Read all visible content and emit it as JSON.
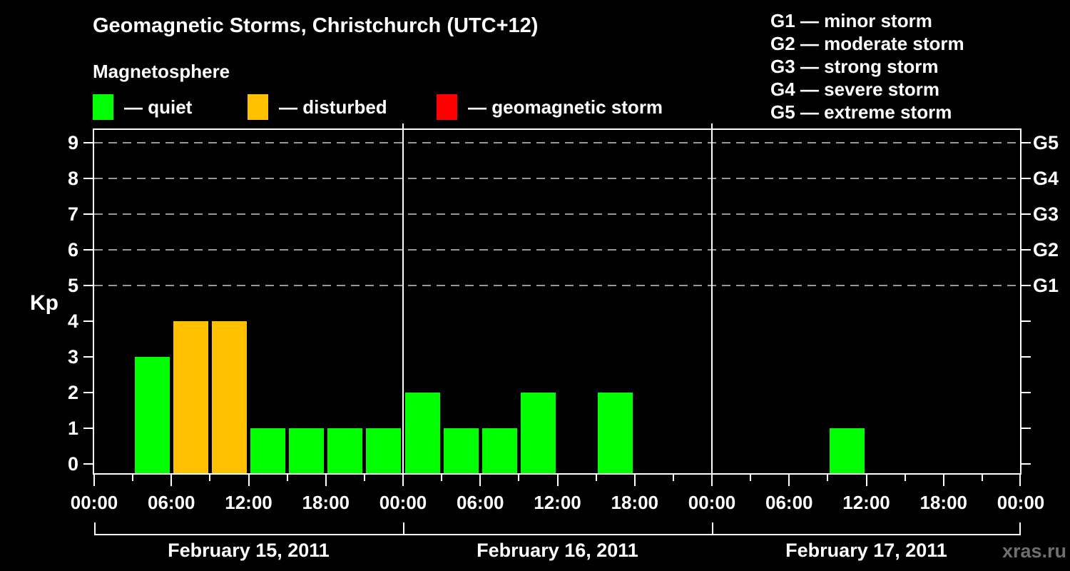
{
  "page": {
    "title": "Geomagnetic Storms, Christchurch (UTC+12)",
    "subtitle": "Magnetosphere",
    "watermark": "xras.ru"
  },
  "legend": {
    "items": [
      {
        "name": "quiet",
        "label": "— quiet",
        "color": "#00ff00"
      },
      {
        "name": "disturbed",
        "label": "— disturbed",
        "color": "#ffc000"
      },
      {
        "name": "storm",
        "label": "— geomagnetic storm",
        "color": "#ff0000"
      }
    ]
  },
  "g_scale_legend": {
    "items": [
      "G1 — minor storm",
      "G2 — moderate storm",
      "G3 — strong storm",
      "G4 — severe storm",
      "G5 — extreme storm"
    ]
  },
  "chart_data": {
    "type": "bar",
    "title": "Geomagnetic Storms, Christchurch (UTC+12)",
    "ylabel": "Kp",
    "ylim": [
      0,
      9
    ],
    "yticks": [
      0,
      1,
      2,
      3,
      4,
      5,
      6,
      7,
      8,
      9
    ],
    "gridlines_at": [
      5,
      6,
      7,
      8,
      9
    ],
    "grid": "horizontal dashed lines at storm levels G1–G5 only",
    "right_axis_labels": [
      {
        "value": 5,
        "label": "G1"
      },
      {
        "value": 6,
        "label": "G2"
      },
      {
        "value": 7,
        "label": "G3"
      },
      {
        "value": 8,
        "label": "G4"
      },
      {
        "value": 9,
        "label": "G5"
      }
    ],
    "x_time_ticks": [
      "00:00",
      "06:00",
      "12:00",
      "18:00"
    ],
    "x_final_tick": "00:00",
    "bar_interval_hours": 3,
    "days": [
      {
        "date": "February 15, 2011",
        "values": [
          0,
          3,
          4,
          4,
          1,
          1,
          1,
          1
        ],
        "status": [
          "none",
          "quiet",
          "disturbed",
          "disturbed",
          "quiet",
          "quiet",
          "quiet",
          "quiet"
        ]
      },
      {
        "date": "February 16, 2011",
        "values": [
          2,
          1,
          1,
          2,
          0,
          2,
          0,
          0
        ],
        "status": [
          "quiet",
          "quiet",
          "quiet",
          "quiet",
          "none",
          "quiet",
          "none",
          "none"
        ]
      },
      {
        "date": "February 17, 2011",
        "values": [
          0,
          0,
          0,
          1,
          0,
          0,
          0,
          0
        ],
        "status": [
          "none",
          "none",
          "none",
          "quiet",
          "none",
          "none",
          "none",
          "none"
        ]
      }
    ],
    "colors": {
      "quiet": "#00ff00",
      "disturbed": "#ffc000",
      "storm": "#ff0000",
      "axis": "#ffffff",
      "grid": "#999999",
      "background": "#000000",
      "watermark": "#6f6f6f"
    }
  }
}
